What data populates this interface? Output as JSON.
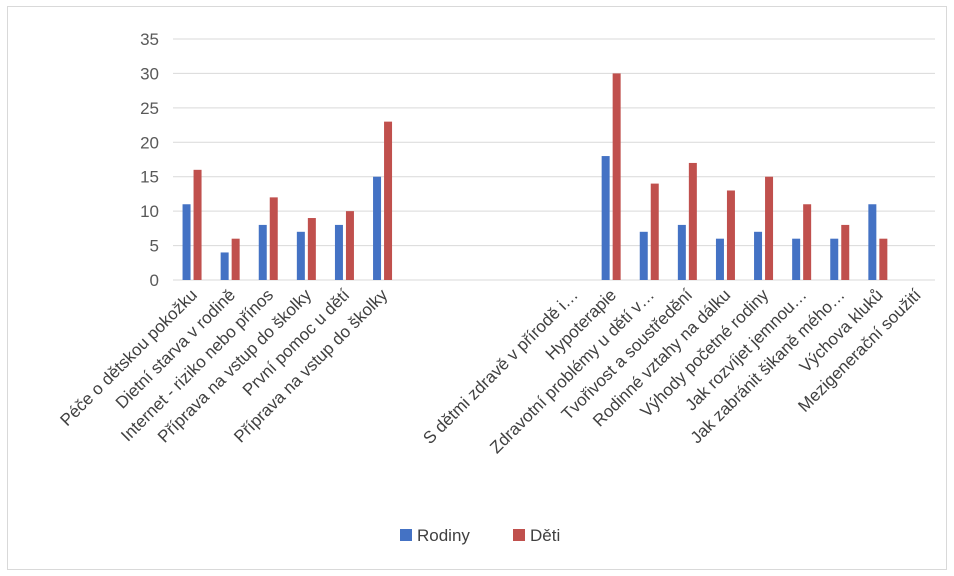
{
  "chart_data": {
    "type": "bar",
    "categories": [
      "Péče o dětskou pokožku",
      "Dietní starva v rodině",
      "Internet - riziko nebo přínos",
      "Příprava na vstup do školky",
      "První pomoc u dětí",
      "Příprava na vstup do školky",
      "",
      "",
      "",
      "",
      "S dětmi zdravě v přírodě i…",
      "Hypoterapie",
      "Zdravotní problémy u dětí v…",
      "Tvořivost a soustředění",
      "Rodinné vztahy na dálku",
      "Výhody početné rodiny",
      "Jak rozvíjet jemnou…",
      "Jak zabránit šikaně mého…",
      "Výchova kluků",
      "Mezigenerační soužití"
    ],
    "series": [
      {
        "name": "Rodiny",
        "color": "#4472c4",
        "values": [
          11,
          4,
          8,
          7,
          8,
          15,
          null,
          null,
          null,
          null,
          null,
          18,
          7,
          8,
          6,
          7,
          6,
          6,
          11,
          null
        ]
      },
      {
        "name": "Děti",
        "color": "#c0504d",
        "values": [
          16,
          6,
          12,
          9,
          10,
          23,
          null,
          null,
          null,
          null,
          null,
          30,
          14,
          17,
          13,
          15,
          11,
          8,
          6,
          null
        ]
      }
    ],
    "yticks": [
      "0",
      "5",
      "10",
      "15",
      "20",
      "25",
      "30",
      "35"
    ],
    "ylim": [
      0,
      35
    ],
    "grid": true,
    "legend_position": "bottom",
    "title": "",
    "xlabel": "",
    "ylabel": ""
  }
}
